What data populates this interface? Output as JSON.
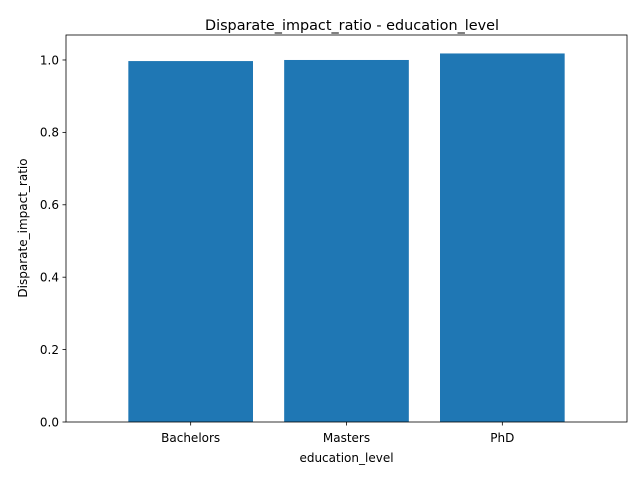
{
  "chart_data": {
    "type": "bar",
    "title": "Disparate_impact_ratio - education_level",
    "xlabel": "education_level",
    "ylabel": "Disparate_impact_ratio",
    "categories": [
      "Bachelors",
      "Masters",
      "PhD"
    ],
    "values": [
      0.997,
      1.0,
      1.018
    ],
    "ylim": [
      0,
      1.069
    ],
    "yticks": [
      0.0,
      0.2,
      0.4,
      0.6,
      0.8,
      1.0
    ],
    "ytick_labels": [
      "0.0",
      "0.2",
      "0.4",
      "0.6",
      "0.8",
      "1.0"
    ],
    "bar_color": "#1f77b4",
    "grid": false,
    "legend": "none"
  }
}
